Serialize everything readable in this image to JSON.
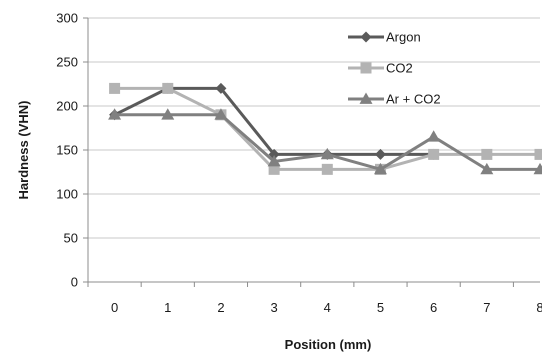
{
  "chart_data": {
    "type": "line",
    "title": "",
    "xlabel": "Position (mm)",
    "ylabel": "Hardness (VHN)",
    "categories": [
      "0",
      "1",
      "2",
      "3",
      "4",
      "5",
      "6",
      "7",
      "8"
    ],
    "ylim": [
      0,
      300
    ],
    "yticks": [
      "0",
      "50",
      "100",
      "150",
      "200",
      "250",
      "300"
    ],
    "grid": true,
    "legend_position": "top-right",
    "series": [
      {
        "name": "Argon",
        "marker": "diamond",
        "color": "#5a5a5a",
        "values": [
          190,
          220,
          220,
          145,
          145,
          145,
          145,
          null,
          null
        ]
      },
      {
        "name": "CO2",
        "marker": "square",
        "color": "#b3b3b3",
        "values": [
          220,
          220,
          190,
          128,
          128,
          128,
          145,
          145,
          145
        ]
      },
      {
        "name": "Ar + CO2",
        "marker": "triangle",
        "color": "#808080",
        "values": [
          190,
          190,
          190,
          137,
          145,
          128,
          165,
          128,
          128
        ]
      }
    ]
  }
}
